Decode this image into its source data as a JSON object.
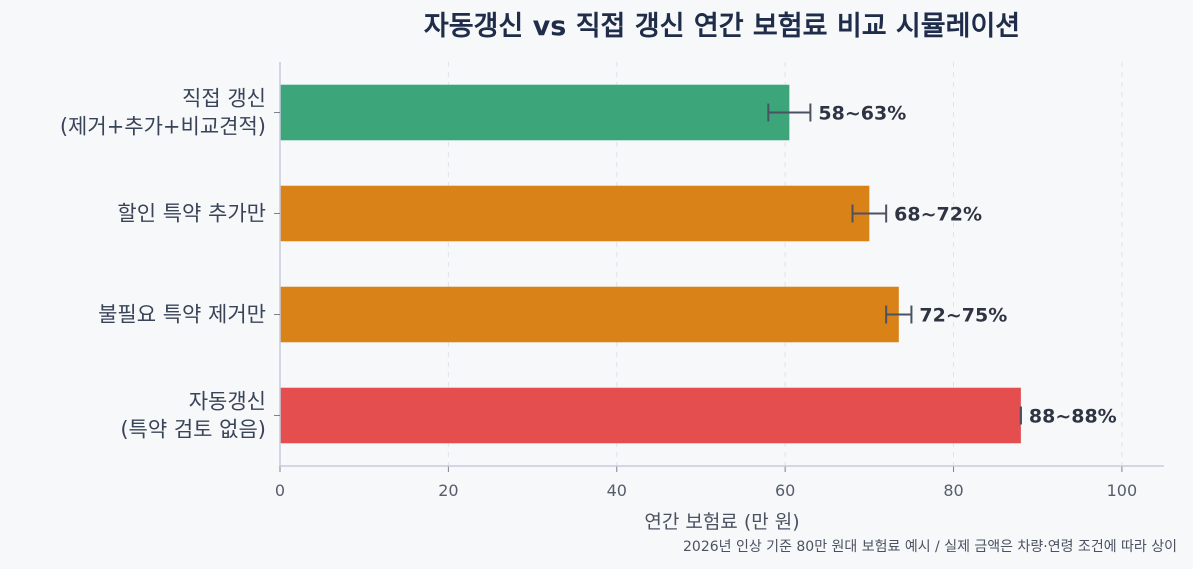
{
  "chart_data": {
    "type": "bar",
    "orientation": "horizontal",
    "title": "자동갱신 vs 직접 갱신 연간 보험료 비교 시뮬레이션",
    "xlabel": "연간 보험료 (만 원)",
    "ylabel": "",
    "footnote": "2026년 인상 기준 80만 원대 보험료 예시 / 실제 금액은 차량·연령 조건에 따라 상이",
    "xlim": [
      0,
      105
    ],
    "xticks": [
      0,
      20,
      40,
      60,
      80,
      100
    ],
    "grid": "vertical-dashed",
    "categories": [
      [
        "직접 갱신",
        "(제거+추가+비교견적)"
      ],
      [
        "할인 특약 추가만"
      ],
      [
        "불필요 특약 제거만"
      ],
      [
        "자동갱신",
        "(특약 검토 없음)"
      ]
    ],
    "values": [
      60.5,
      70,
      73.5,
      88
    ],
    "error_low": [
      58,
      68,
      72,
      88
    ],
    "error_high": [
      63,
      72,
      75,
      88
    ],
    "data_labels": [
      "58~63%",
      "68~72%",
      "72~75%",
      "88~88%"
    ],
    "colors": [
      "#3ca67a",
      "#d98218",
      "#d98218",
      "#e44e4e"
    ]
  }
}
